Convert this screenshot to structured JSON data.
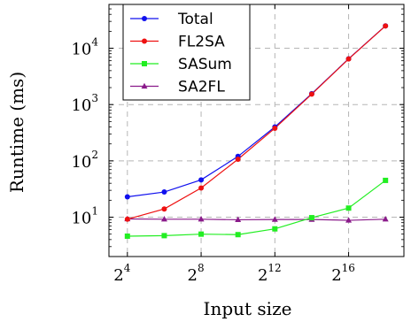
{
  "chart_data": {
    "type": "line",
    "title": "",
    "xlabel": "Input size",
    "ylabel": "Runtime (ms)",
    "x_scale": "log2",
    "y_scale": "log10",
    "xlim": [
      8,
      524288
    ],
    "ylim": [
      2,
      60000
    ],
    "x_ticks": [
      {
        "value": 16,
        "base": "2",
        "exp": "4"
      },
      {
        "value": 256,
        "base": "2",
        "exp": "8"
      },
      {
        "value": 4096,
        "base": "2",
        "exp": "12"
      },
      {
        "value": 65536,
        "base": "2",
        "exp": "16"
      }
    ],
    "y_ticks": [
      {
        "value": 10,
        "base": "10",
        "exp": "1"
      },
      {
        "value": 100,
        "base": "10",
        "exp": "2"
      },
      {
        "value": 1000,
        "base": "10",
        "exp": "3"
      },
      {
        "value": 10000,
        "base": "10",
        "exp": "4"
      }
    ],
    "grid": true,
    "legend_position": "top-left",
    "x": [
      16,
      64,
      256,
      1024,
      4096,
      16384,
      65536,
      262144
    ],
    "series": [
      {
        "name": "Total",
        "color": "#1010ee",
        "marker": "circle",
        "values": [
          23,
          28,
          46,
          120,
          400,
          1560,
          6500,
          25000
        ]
      },
      {
        "name": "FL2SA",
        "color": "#ee1111",
        "marker": "circle",
        "values": [
          9.2,
          14,
          33,
          107,
          380,
          1530,
          6450,
          24900
        ]
      },
      {
        "name": "SASum",
        "color": "#22ee22",
        "marker": "square",
        "values": [
          4.6,
          4.7,
          5.0,
          4.9,
          6.2,
          9.8,
          14.5,
          45
        ]
      },
      {
        "name": "SA2FL",
        "color": "#8a1a8a",
        "marker": "triangle",
        "values": [
          9.3,
          9.2,
          9.2,
          9.0,
          9.1,
          9.1,
          8.8,
          9.2
        ]
      }
    ]
  }
}
